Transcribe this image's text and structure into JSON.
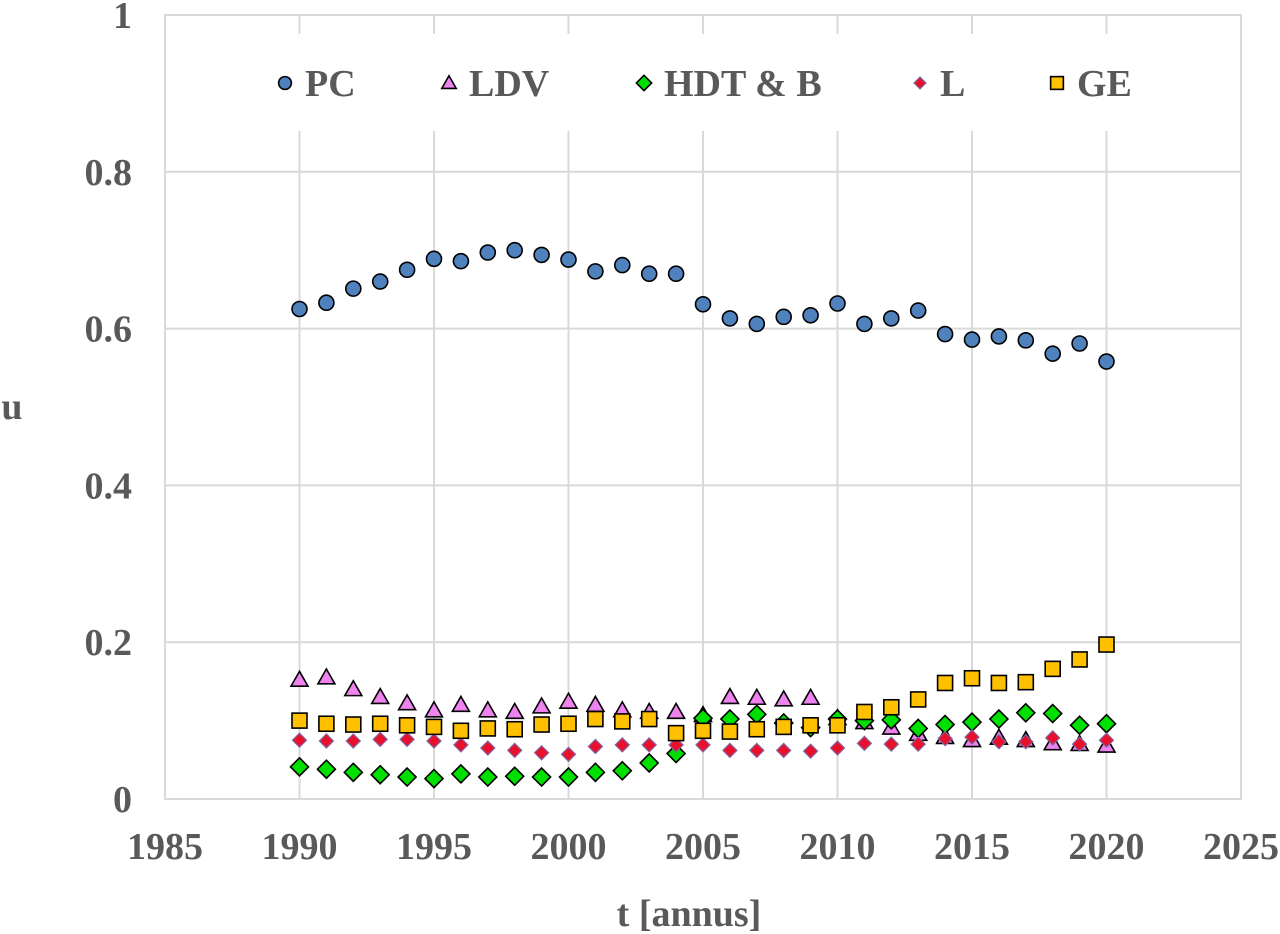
{
  "chart_data": {
    "type": "scatter",
    "title": "",
    "xlabel": "t [annus]",
    "ylabel": "u",
    "xlim": [
      1985,
      2025
    ],
    "ylim": [
      0,
      1
    ],
    "xticks": [
      "1985",
      "1990",
      "1995",
      "2000",
      "2005",
      "2010",
      "2015",
      "2020",
      "2025"
    ],
    "yticks": [
      "0",
      "0.2",
      "0.4",
      "0.6",
      "0.8",
      "1"
    ],
    "grid": true,
    "legend_position": "top",
    "x": [
      1990,
      1991,
      1992,
      1993,
      1994,
      1995,
      1996,
      1997,
      1998,
      1999,
      2000,
      2001,
      2002,
      2003,
      2004,
      2005,
      2006,
      2007,
      2008,
      2009,
      2010,
      2011,
      2012,
      2013,
      2014,
      2015,
      2016,
      2017,
      2018,
      2019,
      2020
    ],
    "series": [
      {
        "name": "PC",
        "marker": "circle",
        "color": "#4F81BD",
        "values": [
          0.625,
          0.633,
          0.651,
          0.66,
          0.675,
          0.689,
          0.686,
          0.697,
          0.7,
          0.694,
          0.688,
          0.673,
          0.681,
          0.67,
          0.67,
          0.631,
          0.613,
          0.606,
          0.615,
          0.617,
          0.632,
          0.606,
          0.613,
          0.623,
          0.593,
          0.586,
          0.59,
          0.585,
          0.568,
          0.581,
          0.558
        ]
      },
      {
        "name": "LDV",
        "marker": "triangle",
        "color": "#EE82EE",
        "values": [
          0.152,
          0.155,
          0.14,
          0.13,
          0.122,
          0.113,
          0.12,
          0.113,
          0.111,
          0.118,
          0.124,
          0.12,
          0.113,
          0.111,
          0.111,
          0.107,
          0.13,
          0.129,
          0.127,
          0.129,
          0.103,
          0.098,
          0.091,
          0.083,
          0.079,
          0.075,
          0.078,
          0.075,
          0.071,
          0.07,
          0.068
        ]
      },
      {
        "name": "HDT & B",
        "marker": "diamond",
        "color": "#00E000",
        "values": [
          0.041,
          0.038,
          0.034,
          0.031,
          0.028,
          0.026,
          0.032,
          0.028,
          0.029,
          0.028,
          0.028,
          0.034,
          0.036,
          0.046,
          0.058,
          0.103,
          0.102,
          0.108,
          0.097,
          0.091,
          0.102,
          0.1,
          0.101,
          0.09,
          0.095,
          0.098,
          0.102,
          0.11,
          0.109,
          0.094,
          0.096
        ]
      },
      {
        "name": "L",
        "marker": "small-diamond",
        "color": "#E8102A",
        "values": [
          0.075,
          0.074,
          0.074,
          0.076,
          0.076,
          0.074,
          0.069,
          0.065,
          0.062,
          0.059,
          0.057,
          0.067,
          0.069,
          0.069,
          0.069,
          0.069,
          0.062,
          0.062,
          0.062,
          0.061,
          0.065,
          0.071,
          0.07,
          0.07,
          0.077,
          0.079,
          0.073,
          0.073,
          0.078,
          0.07,
          0.075
        ]
      },
      {
        "name": "GE",
        "marker": "square",
        "color": "#FFC000",
        "values": [
          0.1,
          0.096,
          0.095,
          0.096,
          0.094,
          0.092,
          0.087,
          0.09,
          0.089,
          0.095,
          0.096,
          0.102,
          0.099,
          0.102,
          0.084,
          0.087,
          0.086,
          0.089,
          0.092,
          0.094,
          0.094,
          0.111,
          0.117,
          0.127,
          0.148,
          0.154,
          0.148,
          0.149,
          0.166,
          0.178,
          0.197
        ]
      }
    ]
  }
}
